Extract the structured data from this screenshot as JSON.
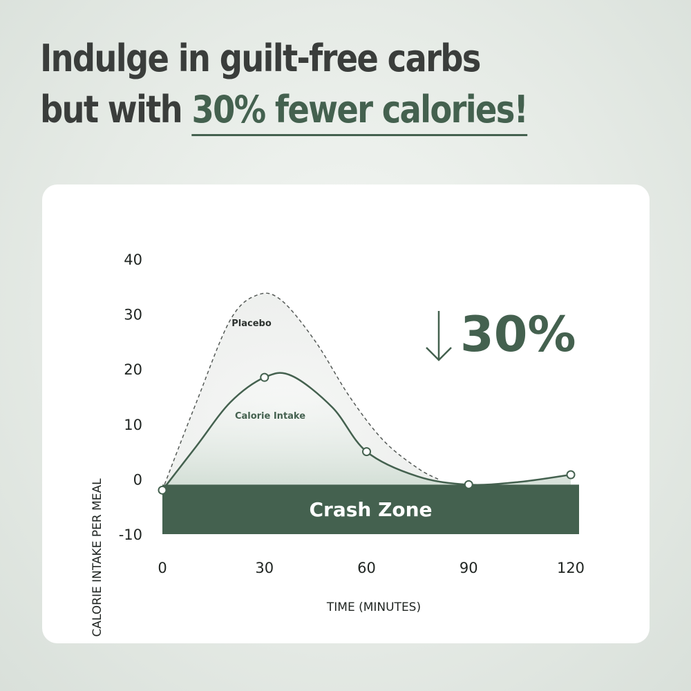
{
  "headline": {
    "line1": "Indulge in guilt-free carbs",
    "line2_prefix": "but with ",
    "line2_accent": "30% fewer calories!"
  },
  "colors": {
    "accent": "#44614f",
    "text": "#3a3d3b",
    "placebo_line": "#555a57",
    "card": "#ffffff"
  },
  "chart_data": {
    "type": "line",
    "xlabel": "TIME (MINUTES)",
    "ylabel": "CALORIE INTAKE PER MEAL",
    "xlim": [
      0,
      120
    ],
    "ylim": [
      -10,
      40
    ],
    "xticks": [
      0,
      30,
      60,
      90,
      120
    ],
    "yticks": [
      40,
      30,
      20,
      10,
      0,
      -10
    ],
    "grid": false,
    "series": [
      {
        "name": "Placebo",
        "style": "dashed",
        "x": [
          0,
          10,
          20,
          28,
          35,
          45,
          55,
          65,
          75,
          81
        ],
        "y": [
          -2,
          14,
          29,
          33.5,
          32.5,
          25,
          15,
          7,
          2,
          0
        ]
      },
      {
        "name": "Calorie Intake",
        "style": "solid",
        "x": [
          0,
          10,
          20,
          30,
          38,
          50,
          60,
          75,
          90,
          105,
          120
        ],
        "y": [
          -2,
          6,
          14,
          18.5,
          18.8,
          13,
          5,
          0.5,
          -1,
          -0.5,
          0.8
        ],
        "markers_x": [
          0,
          30,
          60,
          90,
          120
        ],
        "markers_y": [
          -2,
          18.5,
          5,
          -1,
          0.8
        ]
      }
    ],
    "band": {
      "label": "Crash Zone",
      "y_from": -10,
      "y_to": -1
    },
    "annotation": {
      "arrow": "down-arrow-icon",
      "text": "30%"
    }
  }
}
